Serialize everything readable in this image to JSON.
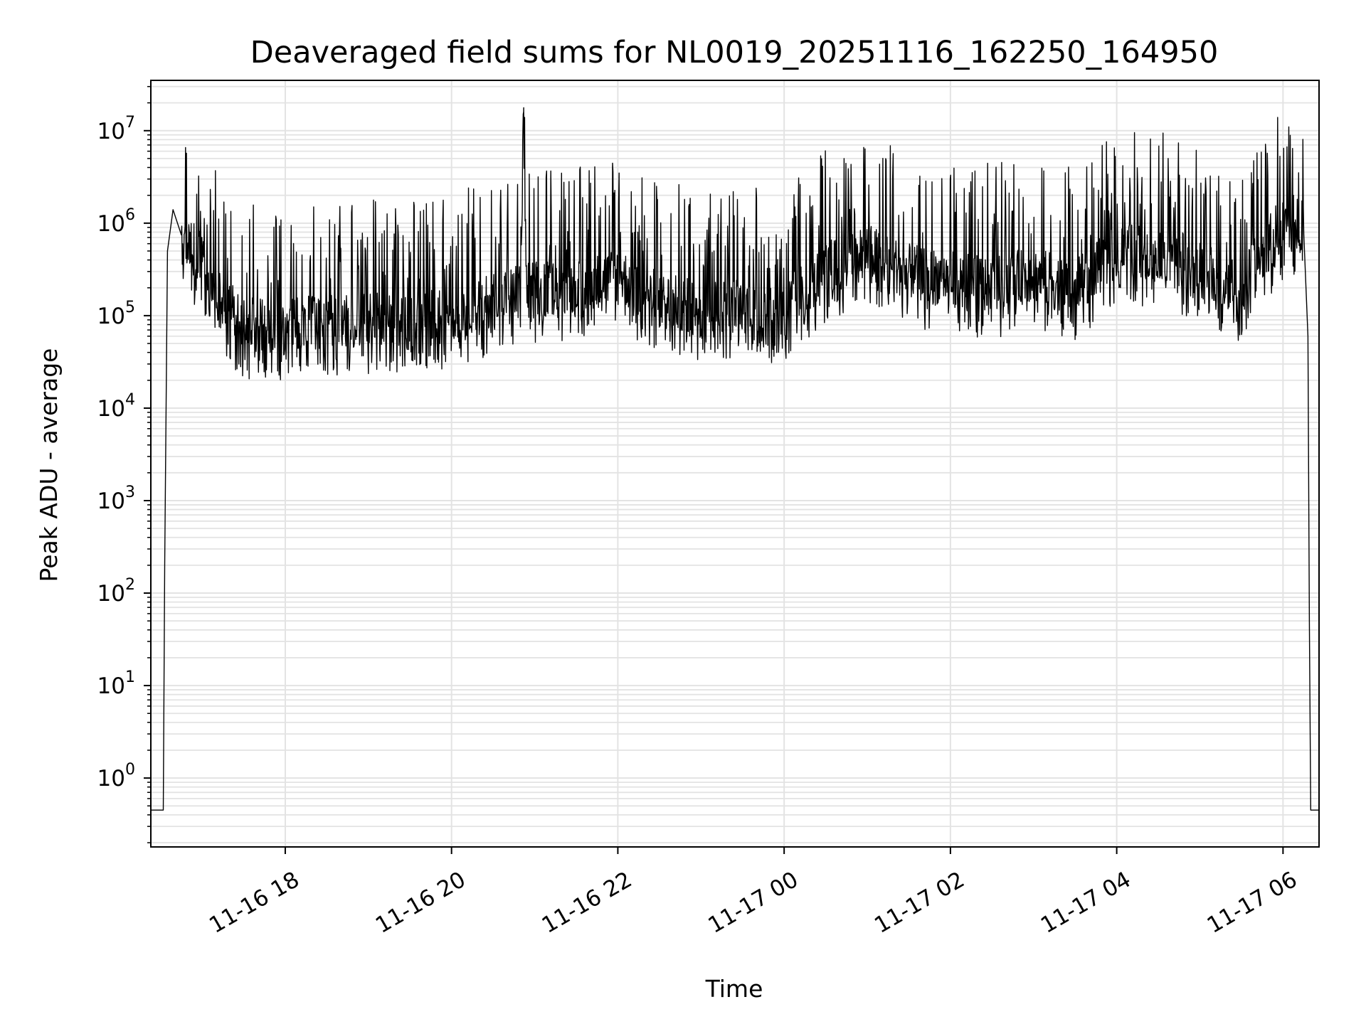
{
  "chart_data": {
    "type": "line",
    "title": "Deaveraged field sums for NL0019_20251116_162250_164950",
    "xlabel": "Time",
    "ylabel": "Peak ADU - average",
    "yscale": "log",
    "ylim": [
      0.18,
      35000000
    ],
    "xlim": [
      "2025-11-16 16:23",
      "2025-11-17 06:26"
    ],
    "grid": "major and minor",
    "x_ticks": [
      "11-16 18",
      "11-16 20",
      "11-16 22",
      "11-17 00",
      "11-17 02",
      "11-17 04",
      "11-17 06"
    ],
    "y_ticks": [
      {
        "base": "10",
        "exp": "0"
      },
      {
        "base": "10",
        "exp": "1"
      },
      {
        "base": "10",
        "exp": "2"
      },
      {
        "base": "10",
        "exp": "3"
      },
      {
        "base": "10",
        "exp": "4"
      },
      {
        "base": "10",
        "exp": "5"
      },
      {
        "base": "10",
        "exp": "6"
      },
      {
        "base": "10",
        "exp": "7"
      }
    ],
    "series": [
      {
        "color": "#000000",
        "x": [
          "2025-11-16 16:23",
          "2025-11-16 16:32",
          "2025-11-16 16:33",
          "2025-11-16 16:35",
          "2025-11-16 16:39",
          "2025-11-16 16:45",
          "2025-11-16 16:55",
          "2025-11-16 17:05",
          "2025-11-16 17:15",
          "2025-11-16 17:30",
          "2025-11-16 18:00",
          "2025-11-16 18:30",
          "2025-11-16 19:00",
          "2025-11-16 19:30",
          "2025-11-16 20:00",
          "2025-11-16 20:30",
          "2025-11-16 20:50",
          "2025-11-16 20:52",
          "2025-11-16 20:54",
          "2025-11-16 21:30",
          "2025-11-16 22:00",
          "2025-11-16 22:30",
          "2025-11-16 23:00",
          "2025-11-16 23:30",
          "2025-11-17 00:00",
          "2025-11-17 00:30",
          "2025-11-17 01:00",
          "2025-11-17 01:30",
          "2025-11-17 02:00",
          "2025-11-17 02:30",
          "2025-11-17 03:00",
          "2025-11-17 03:30",
          "2025-11-17 04:00",
          "2025-11-17 04:30",
          "2025-11-17 05:00",
          "2025-11-17 05:30",
          "2025-11-17 05:57",
          "2025-11-17 06:05",
          "2025-11-17 06:15",
          "2025-11-17 06:18",
          "2025-11-17 06:19",
          "2025-11-17 06:20",
          "2025-11-17 06:26"
        ],
        "y": [
          0.45,
          0.45,
          200,
          500000,
          1400000,
          700000,
          500000,
          300000,
          150000,
          80000,
          80000,
          90000,
          90000,
          85000,
          110000,
          150000,
          200000,
          16000000,
          200000,
          200000,
          280000,
          150000,
          120000,
          130000,
          120000,
          320000,
          500000,
          300000,
          250000,
          220000,
          280000,
          200000,
          500000,
          500000,
          350000,
          200000,
          900000,
          1000000,
          1200000,
          60000,
          50,
          0.45,
          0.45
        ]
      }
    ],
    "noise": {
      "seed": 19,
      "start": "2025-11-16 16:45",
      "end": "2025-11-17 06:15",
      "points": 2400
    }
  }
}
